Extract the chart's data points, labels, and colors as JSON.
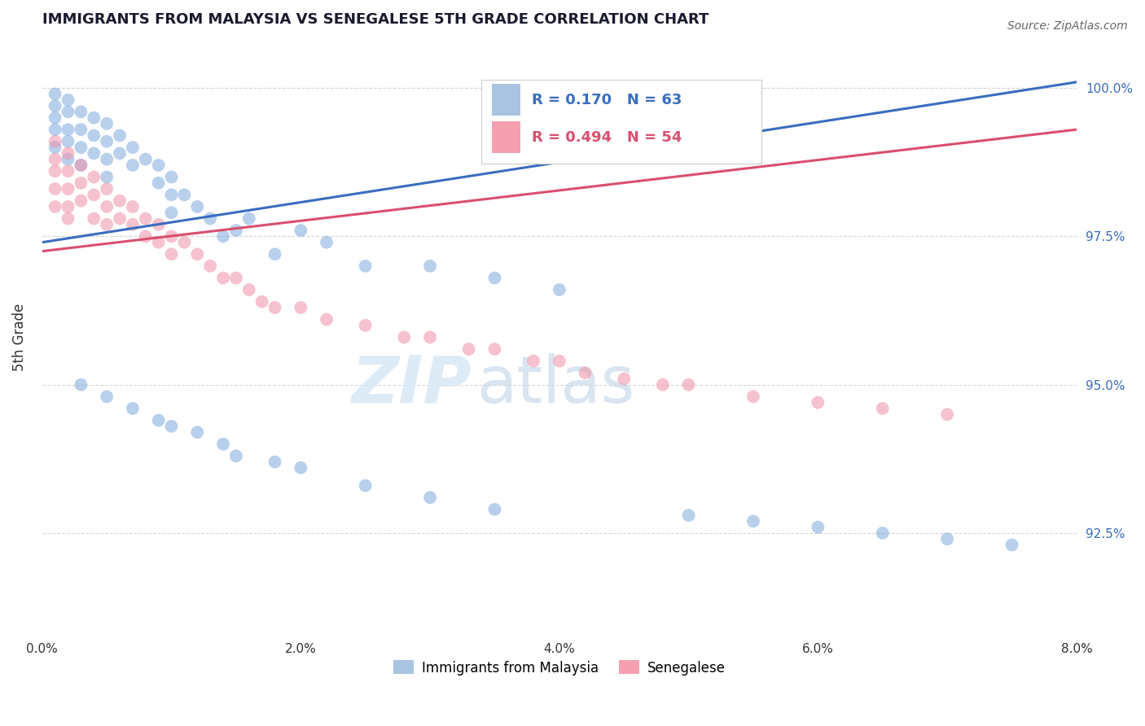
{
  "title": "IMMIGRANTS FROM MALAYSIA VS SENEGALESE 5TH GRADE CORRELATION CHART",
  "source_text": "Source: ZipAtlas.com",
  "ylabel": "5th Grade",
  "xlim": [
    0.0,
    0.08
  ],
  "ylim": [
    0.908,
    1.008
  ],
  "xtick_labels": [
    "0.0%",
    "2.0%",
    "4.0%",
    "6.0%",
    "8.0%"
  ],
  "xtick_vals": [
    0.0,
    0.02,
    0.04,
    0.06,
    0.08
  ],
  "ytick_labels": [
    "92.5%",
    "95.0%",
    "97.5%",
    "100.0%"
  ],
  "ytick_vals": [
    0.925,
    0.95,
    0.975,
    1.0
  ],
  "legend_entry1_label": "Immigrants from Malaysia",
  "legend_entry1_color": "#a8c4e0",
  "legend_entry2_label": "Senegalese",
  "legend_entry2_color": "#f4a0b0",
  "R1": 0.17,
  "N1": 63,
  "R2": 0.494,
  "N2": 54,
  "line1_color": "#3a6dbf",
  "line2_color": "#d94f6e",
  "scatter1_color": "#7faadd",
  "scatter2_color": "#f090a8",
  "background_color": "#ffffff",
  "scatter1_x": [
    0.001,
    0.001,
    0.001,
    0.001,
    0.001,
    0.002,
    0.002,
    0.002,
    0.002,
    0.002,
    0.003,
    0.003,
    0.003,
    0.003,
    0.004,
    0.004,
    0.004,
    0.005,
    0.005,
    0.005,
    0.005,
    0.006,
    0.006,
    0.007,
    0.007,
    0.008,
    0.009,
    0.009,
    0.01,
    0.01,
    0.01,
    0.011,
    0.012,
    0.013,
    0.014,
    0.015,
    0.016,
    0.018,
    0.02,
    0.022,
    0.025,
    0.03,
    0.035,
    0.04,
    0.003,
    0.005,
    0.007,
    0.009,
    0.01,
    0.012,
    0.014,
    0.015,
    0.018,
    0.02,
    0.025,
    0.03,
    0.035,
    0.05,
    0.055,
    0.06,
    0.065,
    0.07,
    0.075
  ],
  "scatter1_y": [
    0.999,
    0.997,
    0.995,
    0.993,
    0.99,
    0.998,
    0.996,
    0.993,
    0.991,
    0.988,
    0.996,
    0.993,
    0.99,
    0.987,
    0.995,
    0.992,
    0.989,
    0.994,
    0.991,
    0.988,
    0.985,
    0.992,
    0.989,
    0.99,
    0.987,
    0.988,
    0.987,
    0.984,
    0.985,
    0.982,
    0.979,
    0.982,
    0.98,
    0.978,
    0.975,
    0.976,
    0.978,
    0.972,
    0.976,
    0.974,
    0.97,
    0.97,
    0.968,
    0.966,
    0.95,
    0.948,
    0.946,
    0.944,
    0.943,
    0.942,
    0.94,
    0.938,
    0.937,
    0.936,
    0.933,
    0.931,
    0.929,
    0.928,
    0.927,
    0.926,
    0.925,
    0.924,
    0.923
  ],
  "scatter2_x": [
    0.001,
    0.001,
    0.001,
    0.001,
    0.001,
    0.002,
    0.002,
    0.002,
    0.002,
    0.002,
    0.003,
    0.003,
    0.003,
    0.004,
    0.004,
    0.004,
    0.005,
    0.005,
    0.005,
    0.006,
    0.006,
    0.007,
    0.007,
    0.008,
    0.008,
    0.009,
    0.009,
    0.01,
    0.01,
    0.011,
    0.012,
    0.013,
    0.014,
    0.015,
    0.016,
    0.017,
    0.018,
    0.02,
    0.022,
    0.025,
    0.028,
    0.03,
    0.033,
    0.035,
    0.038,
    0.04,
    0.042,
    0.045,
    0.048,
    0.05,
    0.055,
    0.06,
    0.065,
    0.07
  ],
  "scatter2_y": [
    0.991,
    0.988,
    0.986,
    0.983,
    0.98,
    0.989,
    0.986,
    0.983,
    0.98,
    0.978,
    0.987,
    0.984,
    0.981,
    0.985,
    0.982,
    0.978,
    0.983,
    0.98,
    0.977,
    0.981,
    0.978,
    0.98,
    0.977,
    0.978,
    0.975,
    0.977,
    0.974,
    0.975,
    0.972,
    0.974,
    0.972,
    0.97,
    0.968,
    0.968,
    0.966,
    0.964,
    0.963,
    0.963,
    0.961,
    0.96,
    0.958,
    0.958,
    0.956,
    0.956,
    0.954,
    0.954,
    0.952,
    0.951,
    0.95,
    0.95,
    0.948,
    0.947,
    0.946,
    0.945
  ]
}
